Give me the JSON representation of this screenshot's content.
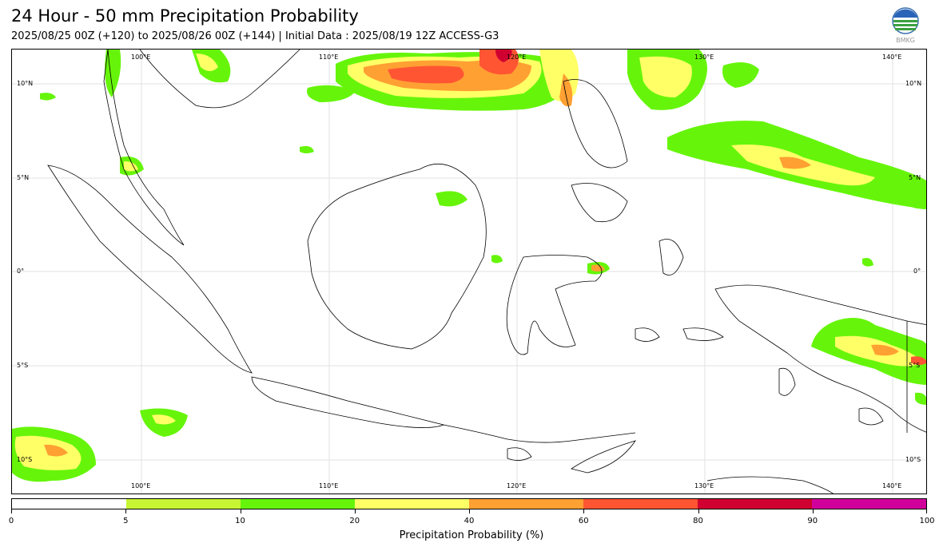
{
  "header": {
    "title": "24 Hour - 50 mm Precipitation Probability",
    "subtitle": "2025/08/25 00Z (+120) to 2025/08/26 00Z (+144) | Initial Data : 2025/08/19 12Z ACCESS-G3",
    "logo_text": "BMKG"
  },
  "map": {
    "region": "Indonesia",
    "lon_ticks": [
      "100°E",
      "110°E",
      "120°E",
      "130°E",
      "140°E"
    ],
    "lat_ticks": [
      "10°N",
      "5°N",
      "0°",
      "5°S",
      "10°S"
    ],
    "colors": {
      "land_outline": "#000000",
      "grid": "#dddddd"
    }
  },
  "legend": {
    "title": "Precipitation Probability (%)",
    "bins": [
      {
        "from": 0,
        "to": 5,
        "color": "#ffffff"
      },
      {
        "from": 5,
        "to": 10,
        "color": "#c8f533"
      },
      {
        "from": 10,
        "to": 20,
        "color": "#66f50a"
      },
      {
        "from": 20,
        "to": 40,
        "color": "#ffff66"
      },
      {
        "from": 40,
        "to": 60,
        "color": "#ffa033"
      },
      {
        "from": 60,
        "to": 80,
        "color": "#ff5533"
      },
      {
        "from": 80,
        "to": 90,
        "color": "#d00030"
      },
      {
        "from": 90,
        "to": 100,
        "color": "#d0009c"
      }
    ],
    "tick_labels": [
      "0",
      "5",
      "10",
      "20",
      "40",
      "60",
      "80",
      "90",
      "100"
    ]
  }
}
